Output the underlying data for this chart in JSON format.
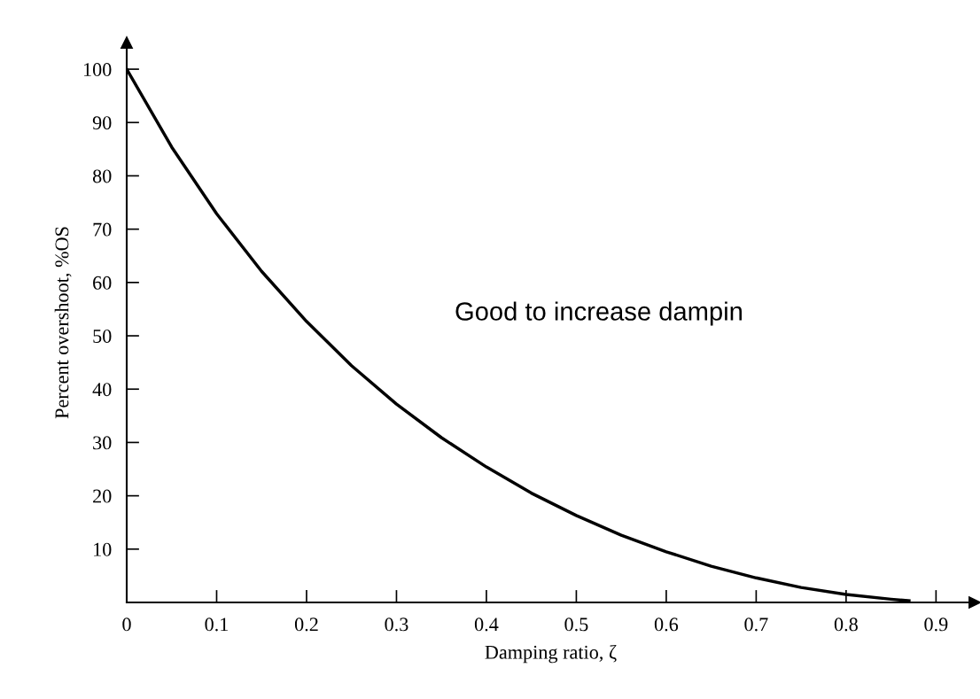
{
  "chart_data": {
    "type": "line",
    "xlabel": "Damping ratio, ζ",
    "ylabel": "Percent overshoot, %OS",
    "x": [
      0,
      0.05,
      0.1,
      0.15,
      0.2,
      0.25,
      0.3,
      0.35,
      0.4,
      0.45,
      0.5,
      0.55,
      0.6,
      0.65,
      0.7,
      0.75,
      0.8,
      0.85,
      0.87
    ],
    "series": [
      {
        "color": "#000000",
        "values": [
          100,
          85.4,
          72.9,
          62.1,
          52.7,
          44.4,
          37.2,
          30.9,
          25.4,
          20.5,
          16.3,
          12.6,
          9.5,
          6.8,
          4.6,
          2.8,
          1.5,
          0.6,
          0.3
        ]
      }
    ],
    "xlim": [
      0,
      0.943
    ],
    "ylim": [
      0,
      105
    ],
    "xticks": [
      0,
      0.1,
      0.2,
      0.3,
      0.4,
      0.5,
      0.6,
      0.7,
      0.8,
      0.9
    ],
    "yticks": [
      10,
      20,
      30,
      40,
      50,
      60,
      70,
      80,
      90,
      100
    ],
    "annotations": [
      "Good to increase dampin"
    ],
    "grid": false,
    "legend": false,
    "marker": "none",
    "line_style": "solid"
  }
}
